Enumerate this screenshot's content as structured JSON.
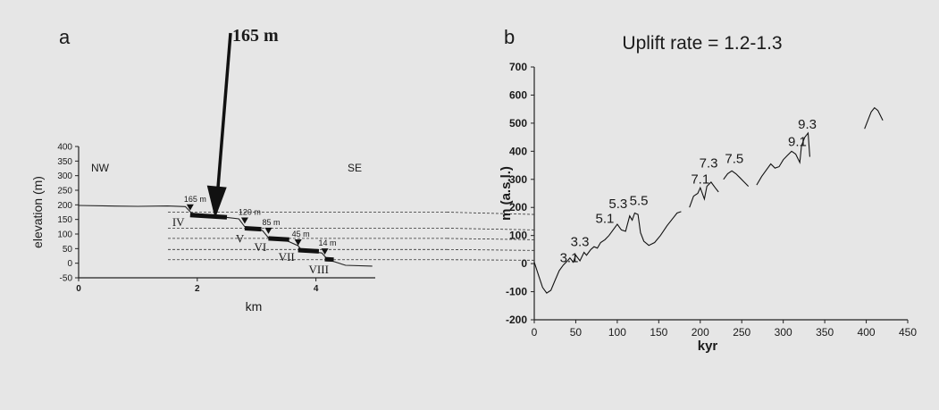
{
  "chart_data": [
    {
      "panel": "a",
      "type": "line",
      "xlabel": "km",
      "ylabel": "elevation (m)",
      "xlim": [
        0,
        5
      ],
      "ylim": [
        -50,
        400
      ],
      "x_ticks": [
        {
          "v": 0,
          "label": "0"
        },
        {
          "v": 2,
          "label": "2"
        },
        {
          "v": 4,
          "label": "4"
        }
      ],
      "y_ticks": [
        400,
        350,
        300,
        250,
        200,
        150,
        100,
        50,
        0,
        -50
      ],
      "direction_labels": {
        "left": "NW",
        "right": "SE"
      },
      "callout": {
        "label": "165 m",
        "target_x": 2.3,
        "target_y": 150
      },
      "profile": [
        [
          0,
          198
        ],
        [
          0.5,
          196
        ],
        [
          1.0,
          195
        ],
        [
          1.5,
          196
        ],
        [
          1.8,
          194
        ],
        [
          1.9,
          172
        ],
        [
          2.3,
          163
        ],
        [
          2.5,
          157
        ],
        [
          2.7,
          152
        ],
        [
          2.8,
          125
        ],
        [
          3.0,
          118
        ],
        [
          3.1,
          112
        ],
        [
          3.2,
          87
        ],
        [
          3.5,
          78
        ],
        [
          3.7,
          60
        ],
        [
          3.75,
          47
        ],
        [
          3.9,
          40
        ],
        [
          4.1,
          35
        ],
        [
          4.2,
          12
        ],
        [
          4.5,
          -7
        ],
        [
          4.95,
          -10
        ]
      ],
      "terraces": [
        {
          "name": "IV",
          "x0": 1.88,
          "x1": 2.5,
          "elev": 165,
          "label": "165 m"
        },
        {
          "name": "V",
          "x0": 2.8,
          "x1": 3.08,
          "elev": 120,
          "label": "120 m"
        },
        {
          "name": "VI",
          "x0": 3.2,
          "x1": 3.55,
          "elev": 85,
          "label": "85 m"
        },
        {
          "name": "VII",
          "x0": 3.7,
          "x1": 4.05,
          "elev": 45,
          "label": "45 m"
        },
        {
          "name": "VIII",
          "x0": 4.15,
          "x1": 4.3,
          "elev": 14,
          "label": "14 m"
        }
      ],
      "reference_levels": [
        175,
        120,
        85,
        47,
        12
      ]
    },
    {
      "panel": "b",
      "type": "line",
      "title": "Uplift rate = 1.2-1.3",
      "xlabel": "kyr",
      "ylabel": "m (a.s.l.)",
      "xlim": [
        0,
        450
      ],
      "ylim": [
        -200,
        700
      ],
      "x_ticks": [
        0,
        50,
        100,
        150,
        200,
        250,
        300,
        350,
        400,
        450
      ],
      "y_ticks": [
        700,
        600,
        500,
        400,
        300,
        200,
        100,
        0,
        -100,
        -200
      ],
      "segments": [
        [
          [
            0,
            5
          ],
          [
            5,
            -40
          ],
          [
            10,
            -85
          ],
          [
            15,
            -105
          ],
          [
            20,
            -95
          ],
          [
            25,
            -60
          ],
          [
            30,
            -25
          ],
          [
            35,
            -5
          ],
          [
            40,
            10
          ],
          [
            43,
            20
          ],
          [
            47,
            5
          ],
          [
            50,
            30
          ],
          [
            55,
            10
          ],
          [
            60,
            40
          ],
          [
            63,
            30
          ],
          [
            68,
            50
          ],
          [
            72,
            60
          ],
          [
            76,
            55
          ],
          [
            80,
            75
          ],
          [
            85,
            85
          ],
          [
            90,
            100
          ],
          [
            95,
            120
          ],
          [
            100,
            140
          ],
          [
            105,
            120
          ],
          [
            110,
            115
          ],
          [
            115,
            170
          ],
          [
            118,
            155
          ],
          [
            121,
            180
          ],
          [
            125,
            175
          ],
          [
            128,
            110
          ],
          [
            132,
            80
          ],
          [
            138,
            65
          ],
          [
            145,
            75
          ],
          [
            152,
            100
          ],
          [
            160,
            135
          ],
          [
            168,
            165
          ],
          [
            172,
            180
          ],
          [
            177,
            185
          ]
        ],
        [
          [
            187,
            200
          ],
          [
            192,
            240
          ],
          [
            197,
            250
          ],
          [
            200,
            270
          ],
          [
            205,
            230
          ],
          [
            208,
            275
          ],
          [
            213,
            290
          ],
          [
            218,
            270
          ],
          [
            222,
            255
          ]
        ],
        [
          [
            228,
            300
          ],
          [
            233,
            320
          ],
          [
            238,
            330
          ],
          [
            243,
            320
          ],
          [
            248,
            305
          ],
          [
            253,
            290
          ],
          [
            258,
            275
          ]
        ],
        [
          [
            268,
            280
          ],
          [
            274,
            310
          ],
          [
            280,
            335
          ],
          [
            285,
            355
          ],
          [
            290,
            340
          ],
          [
            295,
            345
          ],
          [
            300,
            370
          ],
          [
            305,
            385
          ],
          [
            310,
            400
          ],
          [
            315,
            390
          ],
          [
            320,
            360
          ],
          [
            322,
            420
          ],
          [
            326,
            450
          ],
          [
            330,
            465
          ],
          [
            332,
            380
          ]
        ],
        [
          [
            398,
            480
          ],
          [
            402,
            510
          ],
          [
            406,
            540
          ],
          [
            410,
            555
          ],
          [
            414,
            545
          ],
          [
            420,
            510
          ]
        ]
      ],
      "reference_levels": [
        175,
        120,
        85,
        47,
        12
      ],
      "annotations": [
        {
          "label": "3.1",
          "x": 42,
          "y": 5
        },
        {
          "label": "3.3",
          "x": 55,
          "y": 62
        },
        {
          "label": "5.1",
          "x": 85,
          "y": 145
        },
        {
          "label": "5.3",
          "x": 101,
          "y": 198
        },
        {
          "label": "5.5",
          "x": 126,
          "y": 208
        },
        {
          "label": "7.1",
          "x": 200,
          "y": 285
        },
        {
          "label": "7.3",
          "x": 210,
          "y": 342
        },
        {
          "label": "7.5",
          "x": 241,
          "y": 358
        },
        {
          "label": "9.1",
          "x": 317,
          "y": 418
        },
        {
          "label": "9.3",
          "x": 329,
          "y": 480
        }
      ]
    }
  ],
  "panel_labels": {
    "a": "a",
    "b": "b"
  }
}
